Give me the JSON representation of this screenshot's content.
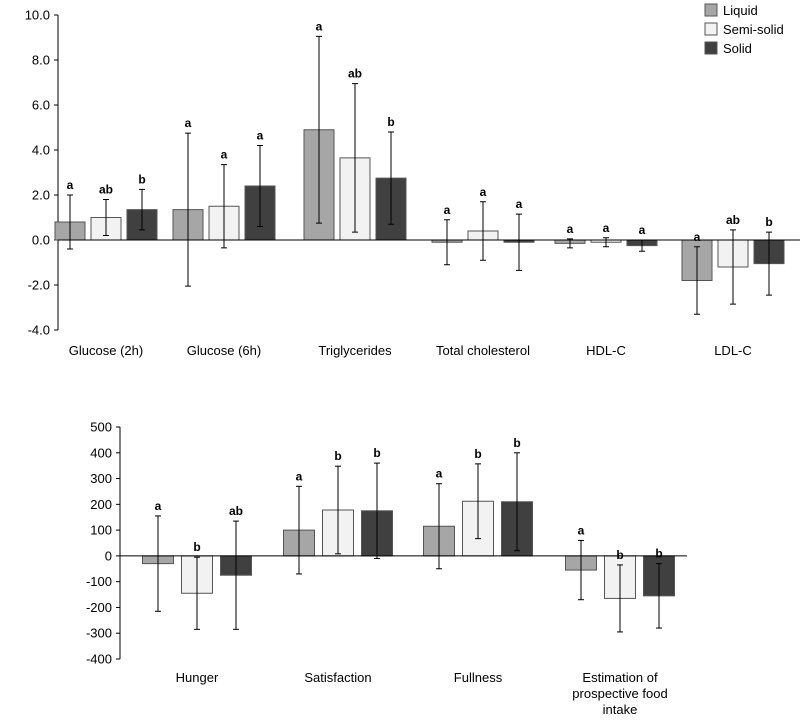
{
  "legend": [
    {
      "label": "Liquid",
      "color": "#a6a6a6"
    },
    {
      "label": "Semi-solid",
      "color": "#f2f2f2"
    },
    {
      "label": "Solid",
      "color": "#404040"
    }
  ],
  "chart_data": [
    {
      "type": "bar",
      "title": "",
      "xlabel": "",
      "ylabel": "",
      "ylim": [
        -4.0,
        10.0
      ],
      "yticks": [
        10.0,
        8.0,
        6.0,
        4.0,
        2.0,
        0.0,
        -2.0,
        -4.0
      ],
      "yticklabels": [
        "10.0",
        "8.0",
        "6.0",
        "4.0",
        "2.0",
        "0.0",
        "-2.0",
        "-4.0"
      ],
      "categories": [
        "Glucose (2h)",
        "Glucose (6h)",
        "Triglycerides",
        "Total cholesterol",
        "HDL-C",
        "LDL-C"
      ],
      "series": [
        {
          "name": "Liquid",
          "values": [
            0.8,
            1.35,
            4.9,
            -0.1,
            -0.15,
            -1.8
          ],
          "errors": [
            1.2,
            3.4,
            4.15,
            1.0,
            0.2,
            1.5
          ],
          "labels": [
            "a",
            "a",
            "a",
            "a",
            "a",
            "a"
          ]
        },
        {
          "name": "Semi-solid",
          "values": [
            1.0,
            1.5,
            3.65,
            0.4,
            -0.1,
            -1.2
          ],
          "errors": [
            0.8,
            1.85,
            3.3,
            1.3,
            0.2,
            1.65
          ],
          "labels": [
            "ab",
            "a",
            "ab",
            "a",
            "a",
            "ab"
          ]
        },
        {
          "name": "Solid",
          "values": [
            1.35,
            2.4,
            2.75,
            -0.1,
            -0.25,
            -1.05
          ],
          "errors": [
            0.9,
            1.8,
            2.05,
            1.25,
            0.25,
            1.4
          ],
          "labels": [
            "b",
            "a",
            "b",
            "a",
            "a",
            "b"
          ]
        }
      ]
    },
    {
      "type": "bar",
      "title": "",
      "xlabel": "",
      "ylabel": "",
      "ylim": [
        -400,
        500
      ],
      "yticks": [
        500,
        400,
        300,
        200,
        100,
        0,
        -100,
        -200,
        -300,
        -400
      ],
      "yticklabels": [
        "500",
        "400",
        "300",
        "200",
        "100",
        "0",
        "-100",
        "-200",
        "-300",
        "-400"
      ],
      "categories": [
        "Hunger",
        "Satisfaction",
        "Fullness",
        "Estimation of prospective food intake"
      ],
      "category_lines": [
        [
          "Hunger"
        ],
        [
          "Satisfaction"
        ],
        [
          "Fullness"
        ],
        [
          "Estimation of",
          "prospective food",
          "intake"
        ]
      ],
      "series": [
        {
          "name": "Liquid",
          "values": [
            -30,
            100,
            115,
            -55
          ],
          "errors": [
            185,
            170,
            165,
            115
          ],
          "labels": [
            "a",
            "a",
            "a",
            "a"
          ]
        },
        {
          "name": "Semi-solid",
          "values": [
            -145,
            178,
            212,
            -165
          ],
          "errors": [
            140,
            170,
            145,
            130
          ],
          "labels": [
            "b",
            "b",
            "b",
            "b"
          ]
        },
        {
          "name": "Solid",
          "values": [
            -75,
            175,
            210,
            -155
          ],
          "errors": [
            210,
            185,
            190,
            125
          ],
          "labels": [
            "ab",
            "b",
            "b",
            "b"
          ]
        }
      ]
    }
  ]
}
